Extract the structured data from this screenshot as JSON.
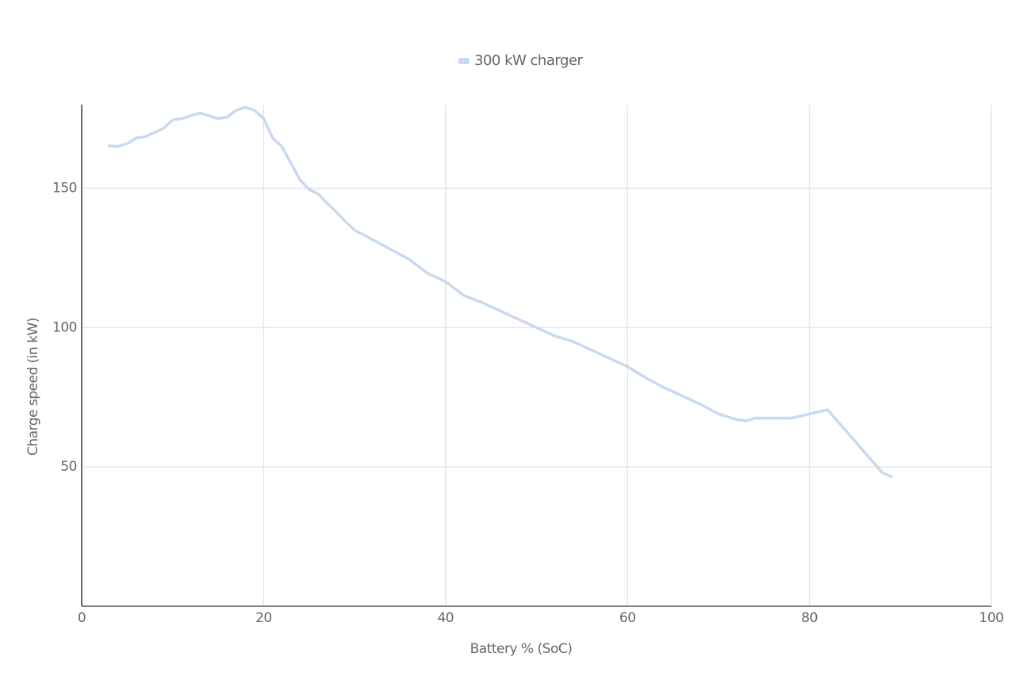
{
  "chart_data": {
    "type": "line",
    "x_label": "Battery % (SoC)",
    "y_label": "Charge speed (in kW)",
    "x": [
      3,
      4,
      5,
      6,
      7,
      8,
      9,
      10,
      11,
      12,
      13,
      14,
      15,
      16,
      17,
      18,
      19,
      20,
      21,
      22,
      23,
      24,
      25,
      26,
      27,
      28,
      29,
      30,
      32,
      34,
      36,
      38,
      40,
      42,
      44,
      46,
      48,
      50,
      52,
      54,
      56,
      58,
      60,
      62,
      64,
      66,
      68,
      70,
      72,
      73,
      74,
      76,
      78,
      80,
      82,
      84,
      86,
      88,
      89
    ],
    "series": [
      {
        "name": "300 kW charger",
        "color": "#c8d9f0",
        "values": [
          165.2,
          165,
          166,
          168,
          168.5,
          170,
          171.5,
          174.5,
          175,
          176,
          177,
          176,
          175,
          175.5,
          178,
          179,
          178,
          175,
          168,
          165,
          159,
          153,
          149.5,
          148,
          144.5,
          141.5,
          138,
          135,
          131.5,
          128,
          124.5,
          119.5,
          116.5,
          111.5,
          109,
          106,
          103,
          100,
          97,
          95,
          92,
          89,
          86,
          82,
          78.5,
          75.5,
          72.5,
          69,
          67,
          66.5,
          67.5,
          67.5,
          67.5,
          69,
          70.5,
          63,
          55.5,
          48,
          46.5
        ]
      }
    ],
    "xlim": [
      0,
      100
    ],
    "xticks": [
      0,
      20,
      40,
      60,
      80,
      100
    ],
    "ylim": [
      0,
      180
    ],
    "yticks": [
      50,
      100,
      150
    ],
    "grid": true,
    "legend": "top"
  }
}
